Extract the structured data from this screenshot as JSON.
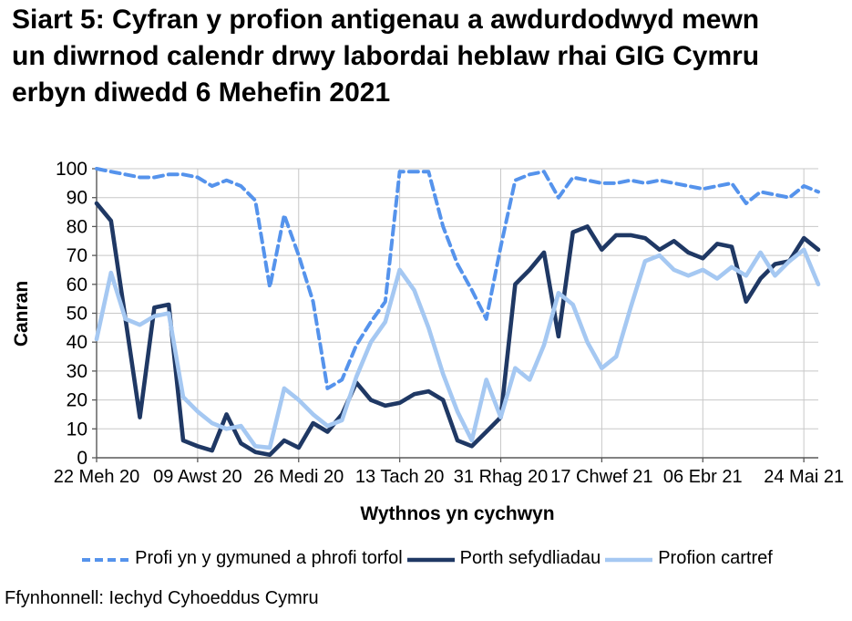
{
  "title": "Siart 5: Cyfran y profion antigenau a awdurdodwyd mewn un diwrnod calendr drwy labordai heblaw rhai GIG Cymru erbyn diwedd 6 Mehefin 2021",
  "source": "Ffynhonnell: Iechyd Cyhoeddus Cymru",
  "chart_data": {
    "type": "line",
    "title": "Siart 5: Cyfran y profion antigenau a awdurdodwyd mewn un diwrnod calendr drwy labordai heblaw rhai GIG Cymru erbyn diwedd 6 Mehefin 2021",
    "xlabel": "Wythnos yn cychwyn",
    "ylabel": "Canran",
    "ylim": [
      0,
      100
    ],
    "y_tick_step": 10,
    "y_tick_labels": [
      "0",
      "10",
      "20",
      "30",
      "40",
      "50",
      "60",
      "70",
      "80",
      "90",
      "100"
    ],
    "x_tick_labels": [
      "22 Meh 20",
      "09 Awst 20",
      "26 Medi 20",
      "13 Tach 20",
      "31 Rhag 20",
      "17 Chwef 21",
      "06 Ebr 21",
      "24 Mai 21"
    ],
    "x_tick_positions": [
      0,
      7,
      14,
      21,
      28,
      35,
      42,
      49
    ],
    "n_points": 51,
    "grid": {
      "horizontal": true,
      "vertical": true,
      "color": "#C8C8C8"
    },
    "axis_color": "#595959",
    "legend_position": "bottom",
    "series": [
      {
        "name": "Profi yn y gymuned a phrofi torfol",
        "style": "dashed",
        "color": "#5593EC",
        "values": [
          100,
          99,
          98,
          97,
          97,
          98,
          98,
          97,
          94,
          96,
          94,
          89,
          59,
          84,
          70,
          54,
          24,
          27,
          39,
          47,
          54,
          99,
          99,
          99,
          80,
          67,
          58,
          48,
          73,
          96,
          98,
          99,
          90,
          97,
          96,
          95,
          95,
          96,
          95,
          96,
          95,
          94,
          93,
          94,
          95,
          88,
          92,
          91,
          90,
          94,
          92
        ]
      },
      {
        "name": "Porth sefydliadau",
        "style": "solid",
        "color": "#1F3864",
        "values": [
          88,
          82,
          48,
          14,
          52,
          53,
          6,
          4,
          2.5,
          15,
          5,
          2,
          1,
          6,
          3.5,
          12,
          9,
          15,
          26,
          20,
          18,
          19,
          22,
          23,
          20,
          6,
          4,
          9,
          14,
          60,
          65,
          71,
          42,
          78,
          80,
          72,
          77,
          77,
          76,
          72,
          75,
          71,
          69,
          74,
          73,
          54,
          62,
          67,
          68,
          76,
          72
        ]
      },
      {
        "name": "Profion cartref",
        "style": "solid",
        "color": "#A5C8F2",
        "values": [
          41,
          64,
          48,
          46,
          49,
          50,
          21,
          16,
          12,
          10,
          11,
          4,
          3.5,
          24,
          20,
          15,
          11,
          13,
          28,
          40,
          47,
          65,
          58,
          45,
          29,
          16,
          6,
          27,
          14,
          31,
          27,
          39,
          57,
          53,
          40,
          31,
          35,
          52,
          68,
          70,
          65,
          63,
          65,
          62,
          66,
          63,
          71,
          63,
          68,
          72,
          60
        ]
      }
    ]
  }
}
